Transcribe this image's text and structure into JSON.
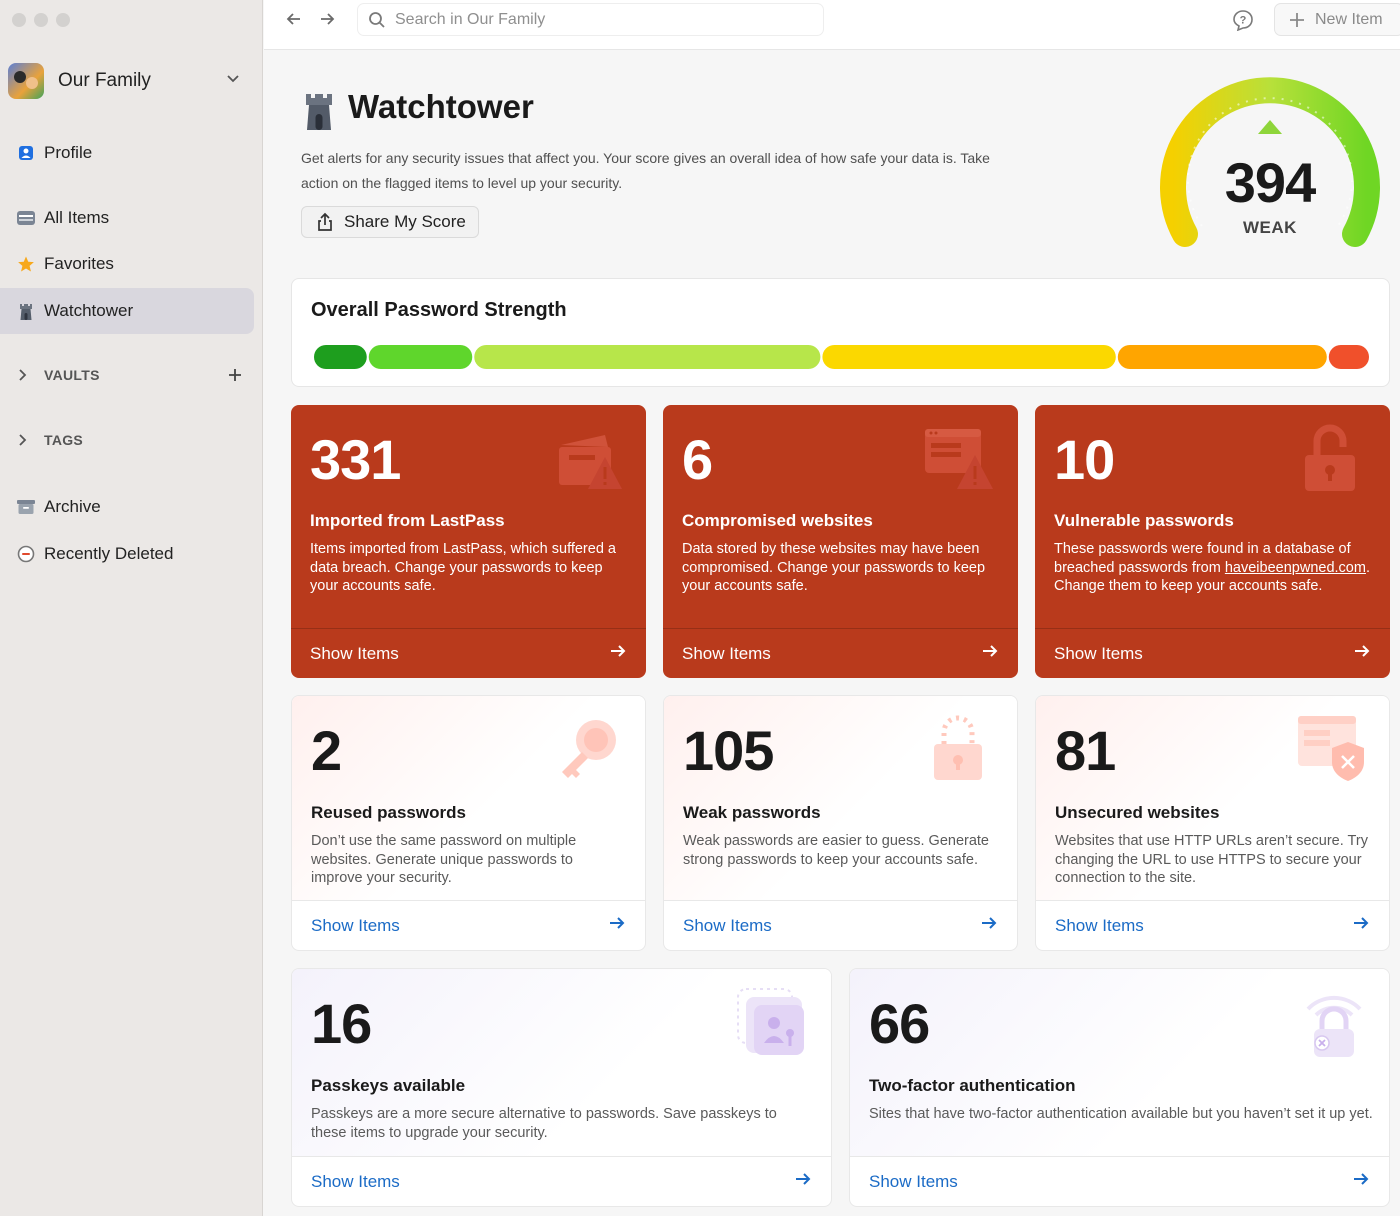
{
  "sidebar": {
    "account_name": "Our Family",
    "items": [
      {
        "label": "Profile"
      },
      {
        "label": "All Items"
      },
      {
        "label": "Favorites"
      },
      {
        "label": "Watchtower"
      },
      {
        "label": "Archive"
      },
      {
        "label": "Recently Deleted"
      }
    ],
    "sections": [
      {
        "label": "VAULTS"
      },
      {
        "label": "TAGS"
      }
    ]
  },
  "toolbar": {
    "search_placeholder": "Search in Our Family",
    "new_item_label": "New Item"
  },
  "header": {
    "title": "Watchtower",
    "description": "Get alerts for any security issues that affect you. Your score gives an overall idea of how safe your data is. Take action on the flagged items to level up your security.",
    "share_label": "Share My Score"
  },
  "score": {
    "value": "394",
    "label": "WEAK",
    "colors": [
      "#f5d000",
      "#b8e03a",
      "#6fd624"
    ]
  },
  "strength": {
    "title": "Overall Password Strength",
    "segments": [
      {
        "color": "#1e9e1e",
        "share": 0.05
      },
      {
        "color": "#5fd62c",
        "share": 0.1
      },
      {
        "color": "#b7e64a",
        "share": 0.33
      },
      {
        "color": "#fbd800",
        "share": 0.28
      },
      {
        "color": "#ffa500",
        "share": 0.2
      },
      {
        "color": "#f0502b",
        "share": 0.04
      }
    ]
  },
  "cards": {
    "red": [
      {
        "value": "331",
        "title": "Imported from LastPass",
        "description": "Items imported from LastPass, which suffered a data breach. Change your passwords to keep your accounts safe.",
        "action": "Show Items"
      },
      {
        "value": "6",
        "title": "Compromised websites",
        "description": "Data stored by these websites may have been compromised. Change your passwords to keep your accounts safe.",
        "action": "Show Items"
      },
      {
        "value": "10",
        "title": "Vulnerable passwords",
        "description_before": "These passwords were found in a database of breached passwords from ",
        "description_link": "haveibeenpwned.com",
        "description_after": ". Change them to keep your accounts safe.",
        "action": "Show Items"
      }
    ],
    "pink": [
      {
        "value": "2",
        "title": "Reused passwords",
        "description": "Don’t use the same password on multiple websites. Generate unique passwords to improve your security.",
        "action": "Show Items"
      },
      {
        "value": "105",
        "title": "Weak passwords",
        "description": "Weak passwords are easier to guess. Generate strong passwords to keep your accounts safe.",
        "action": "Show Items"
      },
      {
        "value": "81",
        "title": "Unsecured websites",
        "description": "Websites that use HTTP URLs aren’t secure. Try changing the URL to use HTTPS to secure your connection to the site.",
        "action": "Show Items"
      }
    ],
    "purple": [
      {
        "value": "16",
        "title": "Passkeys available",
        "description": "Passkeys are a more secure alternative to passwords. Save passkeys to these items to upgrade your security.",
        "action": "Show Items"
      },
      {
        "value": "66",
        "title": "Two-factor authentication",
        "description": "Sites that have two-factor authentication available but you haven’t set it up yet.",
        "action": "Show Items"
      }
    ]
  },
  "colors": {
    "red_card": "#b93a1c",
    "link_blue": "#1b6bc6"
  }
}
